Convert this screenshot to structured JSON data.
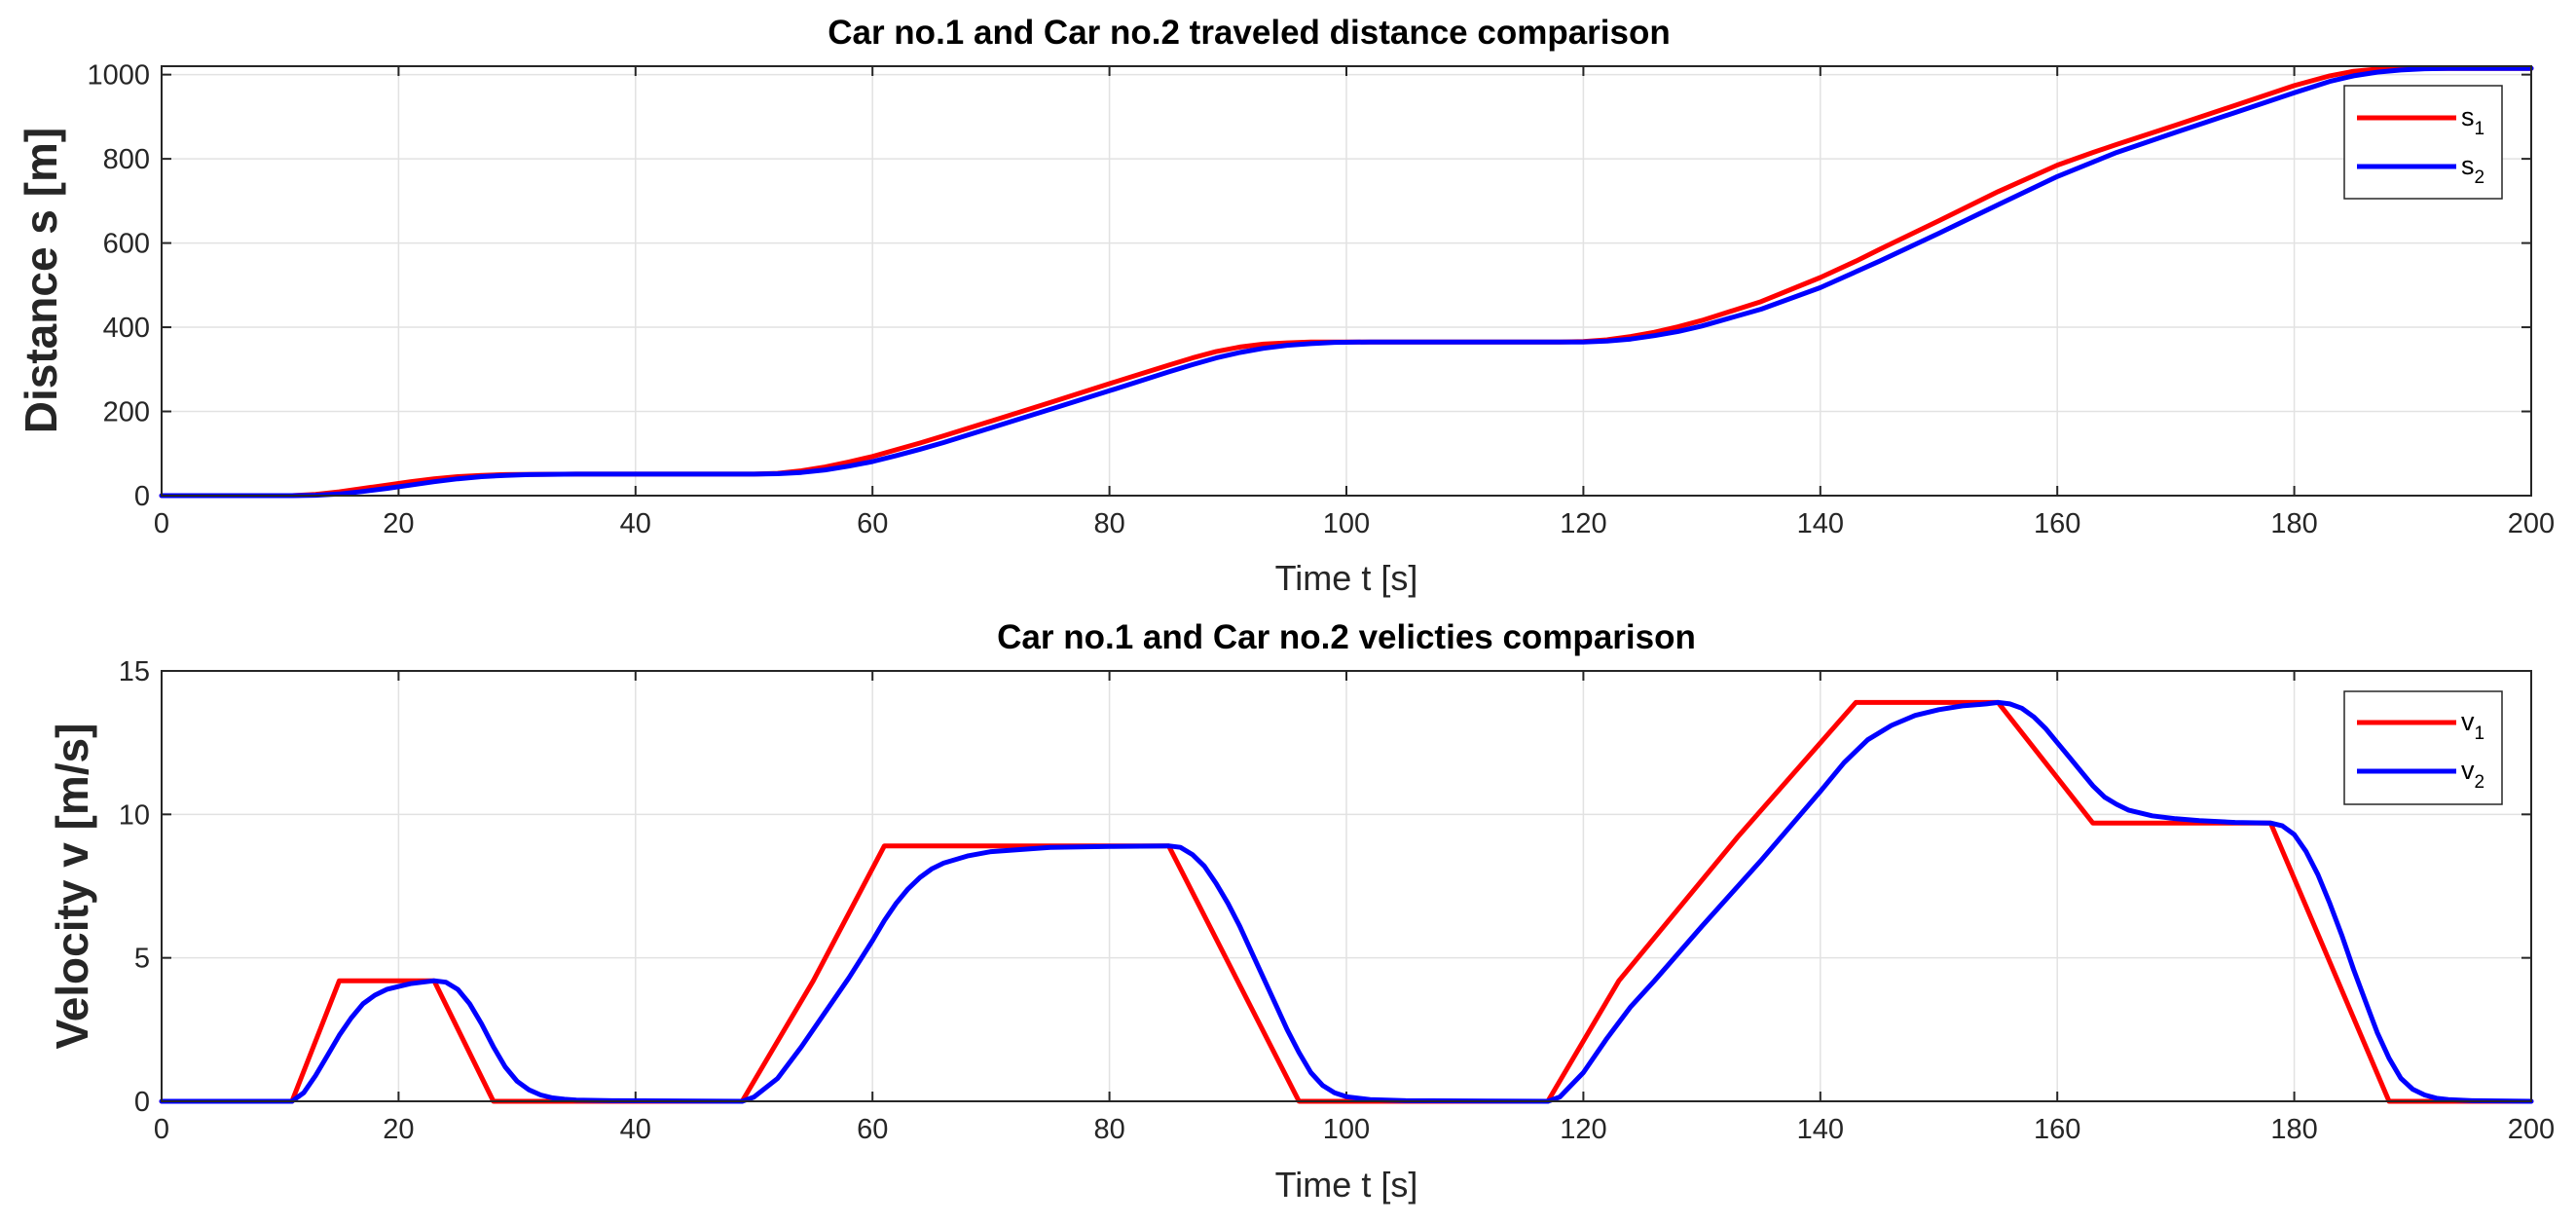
{
  "chart_data": [
    {
      "type": "line",
      "title": "Car no.1 and Car no.2 traveled distance comparison",
      "xlabel": "Time t [s]",
      "ylabel": "Distance s [m]",
      "xlim": [
        0,
        200
      ],
      "ylim": [
        0,
        1020
      ],
      "xticks": [
        0,
        20,
        40,
        60,
        80,
        100,
        120,
        140,
        160,
        180,
        200
      ],
      "yticks": [
        0,
        200,
        400,
        600,
        800,
        1000
      ],
      "grid": true,
      "legend_position": "top-right",
      "series": [
        {
          "name": "s1",
          "label_main": "s",
          "label_sub": "1",
          "color": "#ff0000",
          "x": [
            0,
            11,
            13,
            15,
            17,
            19,
            21,
            23,
            25,
            27,
            29,
            35,
            45,
            50,
            52,
            54,
            56,
            58,
            60,
            62,
            64,
            66,
            70,
            75,
            80,
            85,
            87,
            89,
            91,
            93,
            95,
            97,
            100,
            110,
            118,
            120,
            122,
            124,
            126,
            128,
            130,
            135,
            140,
            143,
            145,
            150,
            155,
            160,
            163,
            165,
            170,
            175,
            180,
            183,
            185,
            187,
            189,
            192,
            200
          ],
          "values": [
            0,
            0,
            3,
            9,
            17,
            25,
            33,
            40,
            45,
            48,
            50,
            51,
            51,
            51,
            53,
            59,
            68,
            80,
            93,
            109,
            125,
            142,
            177,
            221,
            266,
            310,
            327,
            342,
            353,
            360,
            363,
            365,
            365,
            365,
            365,
            366,
            370,
            378,
            388,
            401,
            416,
            461,
            518,
            557,
            585,
            653,
            722,
            785,
            815,
            834,
            880,
            927,
            974,
            997,
            1008,
            1013,
            1015,
            1015,
            1015
          ]
        },
        {
          "name": "s2",
          "label_main": "s",
          "label_sub": "2",
          "color": "#0000ff",
          "x": [
            0,
            11,
            13,
            15,
            17,
            19,
            21,
            23,
            25,
            27,
            29,
            31,
            35,
            45,
            50,
            52,
            54,
            56,
            58,
            60,
            62,
            64,
            66,
            70,
            75,
            80,
            85,
            87,
            89,
            91,
            93,
            95,
            97,
            99,
            102,
            110,
            118,
            120,
            122,
            124,
            126,
            128,
            130,
            135,
            140,
            145,
            150,
            155,
            160,
            165,
            170,
            175,
            180,
            183,
            185,
            187,
            189,
            191,
            193,
            200
          ],
          "values": [
            0,
            0,
            1,
            4,
            10,
            17,
            25,
            33,
            40,
            45,
            48,
            50,
            51,
            51,
            51,
            52,
            55,
            61,
            70,
            81,
            95,
            110,
            126,
            161,
            205,
            249,
            294,
            311,
            327,
            340,
            350,
            357,
            361,
            364,
            365,
            365,
            365,
            365,
            367,
            372,
            380,
            390,
            403,
            443,
            494,
            557,
            623,
            691,
            758,
            815,
            863,
            910,
            957,
            984,
            997,
            1006,
            1011,
            1014,
            1015,
            1015
          ]
        }
      ]
    },
    {
      "type": "line",
      "title": "Car no.1 and Car no.2 velicties comparison",
      "xlabel": "Time t [s]",
      "ylabel": "Velocity v [m/s]",
      "xlim": [
        0,
        200
      ],
      "ylim": [
        0,
        15
      ],
      "xticks": [
        0,
        20,
        40,
        60,
        80,
        100,
        120,
        140,
        160,
        180,
        200
      ],
      "yticks": [
        0,
        5,
        10,
        15
      ],
      "grid": true,
      "legend_position": "top-right",
      "series": [
        {
          "name": "v1",
          "label_main": "v",
          "label_sub": "1",
          "color": "#ff0000",
          "x": [
            0,
            11,
            15,
            23,
            28,
            49,
            55,
            61,
            85,
            96,
            117,
            123,
            133,
            143,
            155,
            163,
            178,
            188,
            200
          ],
          "values": [
            0,
            0,
            4.2,
            4.2,
            0,
            0,
            4.2,
            8.9,
            8.9,
            0,
            0,
            4.2,
            9.2,
            13.9,
            13.9,
            9.7,
            9.7,
            0,
            0
          ]
        },
        {
          "name": "v2",
          "label_main": "v",
          "label_sub": "2",
          "color": "#0000ff",
          "x": [
            0,
            11,
            12,
            13,
            14,
            15,
            16,
            17,
            18,
            19,
            20,
            21,
            22,
            23,
            24,
            25,
            26,
            27,
            28,
            29,
            30,
            31,
            32,
            33,
            34,
            35,
            38,
            49,
            50,
            52,
            54,
            56,
            58,
            60,
            61,
            62,
            63,
            64,
            65,
            66,
            68,
            70,
            75,
            80,
            85,
            86,
            87,
            88,
            89,
            90,
            91,
            92,
            93,
            94,
            95,
            96,
            97,
            98,
            99,
            100,
            102,
            105,
            117,
            118,
            120,
            122,
            124,
            126,
            130,
            135,
            140,
            142,
            144,
            146,
            148,
            150,
            152,
            154,
            155,
            156,
            157,
            158,
            159,
            160,
            161,
            162,
            163,
            164,
            165,
            166,
            168,
            170,
            172,
            175,
            178,
            179,
            180,
            181,
            182,
            183,
            184,
            185,
            186,
            187,
            188,
            189,
            190,
            191,
            192,
            193,
            195,
            200
          ],
          "values": [
            0,
            0,
            0.3,
            0.9,
            1.6,
            2.3,
            2.9,
            3.4,
            3.7,
            3.9,
            4.0,
            4.1,
            4.15,
            4.2,
            4.15,
            3.9,
            3.4,
            2.7,
            1.9,
            1.2,
            0.7,
            0.4,
            0.22,
            0.12,
            0.07,
            0.04,
            0.02,
            0,
            0.15,
            0.8,
            1.9,
            3.1,
            4.3,
            5.6,
            6.3,
            6.9,
            7.4,
            7.8,
            8.1,
            8.3,
            8.55,
            8.7,
            8.85,
            8.88,
            8.9,
            8.85,
            8.6,
            8.2,
            7.6,
            6.9,
            6.1,
            5.2,
            4.3,
            3.4,
            2.5,
            1.7,
            1.0,
            0.55,
            0.3,
            0.16,
            0.06,
            0.02,
            0,
            0.15,
            1.0,
            2.2,
            3.3,
            4.2,
            6.1,
            8.4,
            10.8,
            11.8,
            12.6,
            13.1,
            13.45,
            13.65,
            13.78,
            13.85,
            13.9,
            13.85,
            13.7,
            13.4,
            13.0,
            12.5,
            12.0,
            11.5,
            11.0,
            10.6,
            10.35,
            10.15,
            9.95,
            9.85,
            9.78,
            9.72,
            9.7,
            9.6,
            9.3,
            8.7,
            7.9,
            6.9,
            5.8,
            4.6,
            3.5,
            2.4,
            1.5,
            0.8,
            0.42,
            0.22,
            0.11,
            0.06,
            0.02,
            0
          ]
        }
      ]
    }
  ]
}
